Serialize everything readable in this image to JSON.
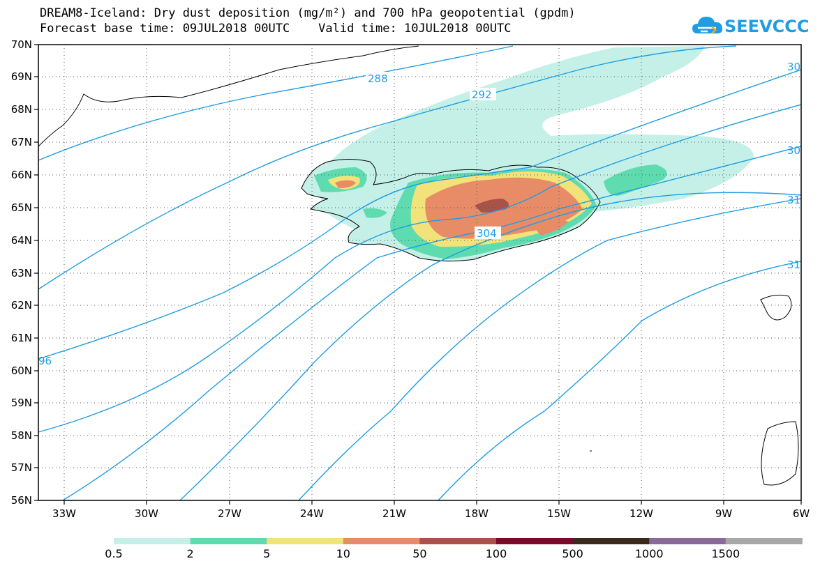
{
  "title_line1": "DREAM8-Iceland: Dry dust deposition (mg/m²) and 700 hPa geopotential (gpdm)",
  "title_line2": "Forecast base time: 09JUL2018 00UTC    Valid time: 10JUL2018 00UTC",
  "logo_text": "SEEVCCC",
  "lat_labels": [
    "70N",
    "69N",
    "68N",
    "67N",
    "66N",
    "65N",
    "64N",
    "63N",
    "62N",
    "61N",
    "60N",
    "59N",
    "58N",
    "57N",
    "56N"
  ],
  "lon_labels": [
    "33W",
    "30W",
    "27W",
    "24W",
    "21W",
    "18W",
    "15W",
    "12W",
    "9W",
    "6W"
  ],
  "contour_labels": [
    "288",
    "292",
    "304",
    "30",
    "30",
    "31",
    "31",
    "96"
  ],
  "colorbar": {
    "colors": [
      "#c4f0e8",
      "#5edcb0",
      "#f2e27a",
      "#e88c68",
      "#a8524a",
      "#7a0a2a",
      "#3a2a1e",
      "#8a6a9a",
      "#a8a8a8"
    ],
    "labels": [
      "0.5",
      "2",
      "5",
      "10",
      "50",
      "100",
      "500",
      "1000",
      "1500"
    ]
  },
  "colors": {
    "contour": "#1e9de3"
  }
}
